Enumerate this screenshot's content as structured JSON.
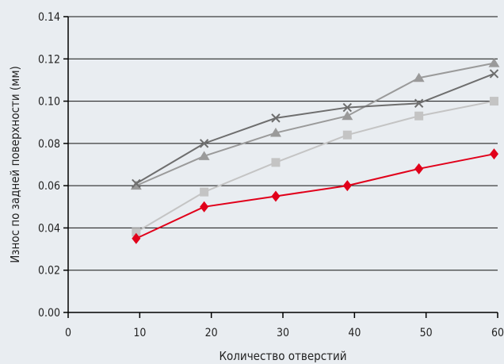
{
  "chart_data": {
    "type": "line",
    "xlabel": "Количество отверстий",
    "ylabel": "Износ по задней поверхности (мм)",
    "xlim": [
      0,
      60
    ],
    "ylim": [
      0,
      0.14
    ],
    "x_ticks": [
      "0",
      "10",
      "20",
      "30",
      "40",
      "50",
      "60"
    ],
    "y_ticks": [
      "0.00",
      "0.02",
      "0.04",
      "0.06",
      "0.08",
      "0.10",
      "0.12",
      "0.14"
    ],
    "grid": "horizontal",
    "x": [
      9.5,
      19,
      29,
      39,
      49,
      59.5
    ],
    "series": [
      {
        "marker": "triangle",
        "color": "#9a9a9a",
        "values": [
          0.06,
          0.074,
          0.085,
          0.093,
          0.111,
          0.118
        ]
      },
      {
        "marker": "x",
        "color": "#6e6e6e",
        "values": [
          0.061,
          0.08,
          0.092,
          0.097,
          0.099,
          0.113
        ]
      },
      {
        "marker": "square",
        "color": "#c4c4c4",
        "values": [
          0.038,
          0.057,
          0.071,
          0.084,
          0.093,
          0.1
        ]
      },
      {
        "marker": "diamond",
        "color": "#e1001a",
        "values": [
          0.035,
          0.05,
          0.055,
          0.06,
          0.068,
          0.075
        ]
      }
    ]
  }
}
